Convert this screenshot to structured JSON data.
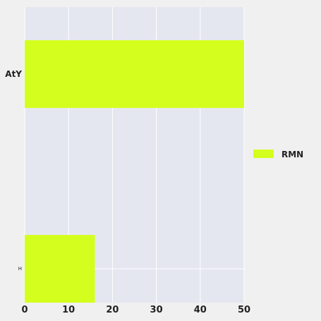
{
  "chart_data": {
    "type": "bar",
    "orientation": "horizontal",
    "categories": [
      "AtY",
      "H"
    ],
    "series": [
      {
        "name": "RMN",
        "values": [
          50,
          16
        ]
      }
    ],
    "xlim": [
      0,
      50
    ],
    "x_ticks": [
      0,
      10,
      20,
      30,
      40,
      50
    ],
    "grid": true,
    "legend_position": "right",
    "colors": {
      "bar": "#d4ff1e",
      "plot_background": "#e5e7f0",
      "page_background": "#f0f0f0",
      "grid": "#ffffff"
    }
  }
}
